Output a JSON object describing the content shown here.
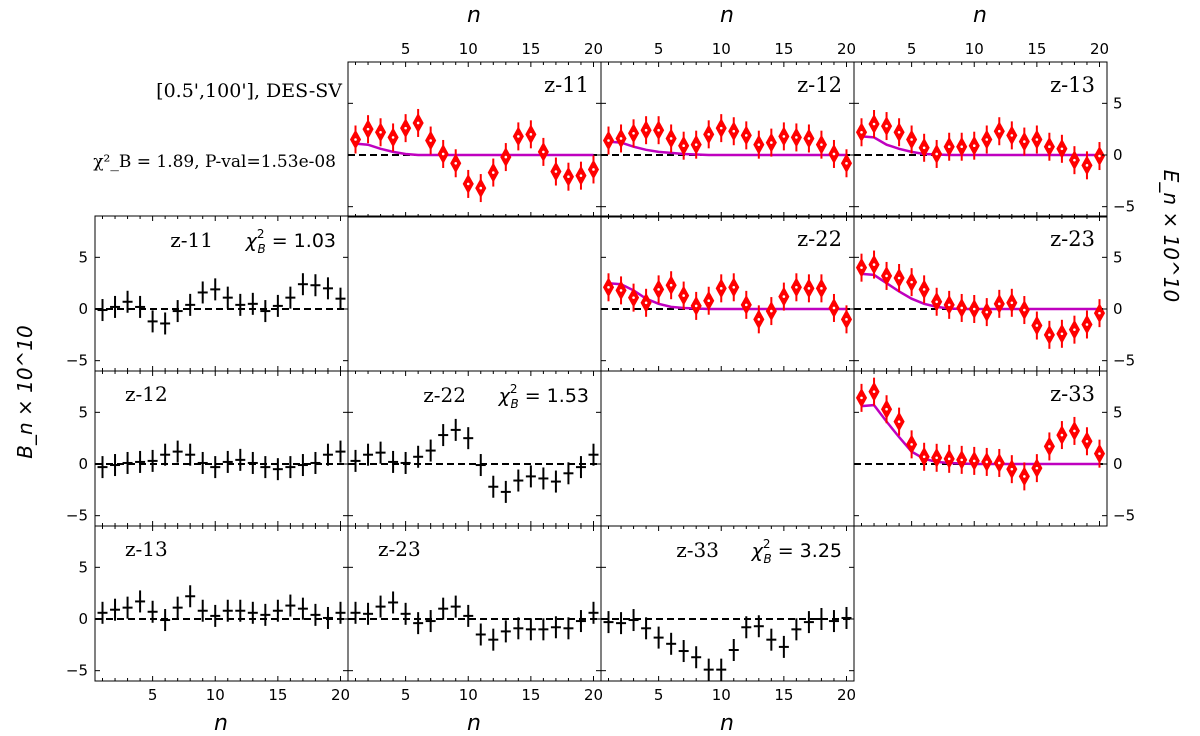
{
  "figure": {
    "header_text": "[0.5',100'],  DES-SV",
    "chi_text": "χ²_B = 1.89, P-val=1.53e-08",
    "x_axis_label": "n",
    "left_ylabel": "B_n × 10^10",
    "right_ylabel": "E_n × 10^10",
    "x_ticks": [
      5,
      10,
      15,
      20
    ],
    "y_ticks": [
      -5,
      0,
      5
    ],
    "colors": {
      "e_marker": "#ff0000",
      "e_model": "#bf00bf",
      "b_marker": "#000000",
      "zero_line": "#000000"
    }
  },
  "chart_data": [
    {
      "type": "scatter",
      "id": "E-z11",
      "label": "z-11",
      "xlim": [
        0.4,
        20.6
      ],
      "ylim": [
        -6,
        9
      ],
      "x": [
        1,
        2,
        3,
        4,
        5,
        6,
        7,
        8,
        9,
        10,
        11,
        12,
        13,
        14,
        15,
        16,
        17,
        18,
        19,
        20
      ],
      "values": [
        1.5,
        2.5,
        2.2,
        1.7,
        2.6,
        3.1,
        1.4,
        0.1,
        -0.8,
        -2.8,
        -3.2,
        -1.7,
        -0.2,
        1.8,
        2.0,
        0.3,
        -1.6,
        -2.1,
        -2.0,
        -1.4
      ],
      "model": [
        1.1,
        1.0,
        0.6,
        0.3,
        0.1,
        0.0,
        0.0,
        0,
        0,
        0,
        0,
        0,
        0,
        0,
        0,
        0,
        0,
        0,
        0,
        0
      ]
    },
    {
      "type": "scatter",
      "id": "E-z12",
      "label": "z-12",
      "xlim": [
        0.4,
        20.6
      ],
      "ylim": [
        -6,
        9
      ],
      "x": [
        1,
        2,
        3,
        4,
        5,
        6,
        7,
        8,
        9,
        10,
        11,
        12,
        13,
        14,
        15,
        16,
        17,
        18,
        19,
        20
      ],
      "values": [
        1.4,
        1.6,
        2.1,
        2.4,
        2.4,
        1.6,
        0.9,
        1.0,
        2.0,
        2.6,
        2.3,
        1.9,
        1.0,
        1.2,
        1.8,
        1.7,
        1.6,
        1.0,
        0.1,
        -0.8
      ],
      "model": [
        1.3,
        1.2,
        0.8,
        0.5,
        0.3,
        0.2,
        0.1,
        0.05,
        0,
        0,
        0,
        0,
        0,
        0,
        0,
        0,
        0,
        0,
        0,
        0
      ]
    },
    {
      "type": "scatter",
      "id": "E-z13",
      "label": "z-13",
      "xlim": [
        0.4,
        20.6
      ],
      "ylim": [
        -6,
        9
      ],
      "x": [
        1,
        2,
        3,
        4,
        5,
        6,
        7,
        8,
        9,
        10,
        11,
        12,
        13,
        14,
        15,
        16,
        17,
        18,
        19,
        20
      ],
      "values": [
        2.2,
        3.0,
        2.8,
        2.2,
        1.5,
        0.7,
        0.1,
        0.8,
        0.8,
        0.9,
        1.5,
        2.3,
        1.9,
        1.3,
        1.5,
        0.8,
        0.6,
        -0.5,
        -1.0,
        -0.1
      ],
      "model": [
        1.8,
        1.7,
        1.0,
        0.6,
        0.3,
        0.1,
        0.05,
        0,
        0,
        0,
        0,
        0,
        0,
        0,
        0,
        0,
        0,
        0,
        0,
        0
      ]
    },
    {
      "type": "scatter",
      "id": "B-z11",
      "label": "z-11",
      "chi": "χ²_B = 1.03",
      "xlim": [
        0.4,
        20.6
      ],
      "ylim": [
        -6,
        9
      ],
      "x": [
        1,
        2,
        3,
        4,
        5,
        6,
        7,
        8,
        9,
        10,
        11,
        12,
        13,
        14,
        15,
        16,
        17,
        18,
        19,
        20
      ],
      "values": [
        -0.1,
        0.2,
        0.7,
        0.2,
        -1.2,
        -1.4,
        -0.2,
        0.4,
        1.6,
        1.9,
        1.1,
        0.4,
        0.5,
        -0.2,
        0.3,
        1.1,
        2.4,
        2.3,
        2.0,
        1.0
      ]
    },
    {
      "type": "scatter",
      "id": "E-z22",
      "label": "z-22",
      "xlim": [
        0.4,
        20.6
      ],
      "ylim": [
        -6,
        9
      ],
      "x": [
        1,
        2,
        3,
        4,
        5,
        6,
        7,
        8,
        9,
        10,
        11,
        12,
        13,
        14,
        15,
        16,
        17,
        18,
        19,
        20
      ],
      "values": [
        2.1,
        1.8,
        1.1,
        0.6,
        1.9,
        2.3,
        1.3,
        0.3,
        0.8,
        2.0,
        2.1,
        0.4,
        -1.0,
        -0.2,
        1.2,
        2.1,
        2.0,
        2.0,
        0.1,
        -1.0
      ],
      "model": [
        2.5,
        2.4,
        1.8,
        1.0,
        0.5,
        0.2,
        0.1,
        0.05,
        0,
        0,
        0,
        0,
        0,
        0,
        0,
        0,
        0,
        0,
        0,
        0
      ]
    },
    {
      "type": "scatter",
      "id": "E-z23",
      "label": "z-23",
      "xlim": [
        0.4,
        20.6
      ],
      "ylim": [
        -6,
        9
      ],
      "x": [
        1,
        2,
        3,
        4,
        5,
        6,
        7,
        8,
        9,
        10,
        11,
        12,
        13,
        14,
        15,
        16,
        17,
        18,
        19,
        20
      ],
      "values": [
        4.0,
        4.3,
        3.2,
        3.0,
        2.6,
        1.9,
        0.7,
        0.4,
        0.1,
        0.0,
        -0.3,
        0.5,
        0.6,
        -0.1,
        -1.6,
        -2.5,
        -2.4,
        -2.0,
        -1.5,
        -0.4
      ],
      "model": [
        3.4,
        3.3,
        2.5,
        1.7,
        1.0,
        0.5,
        0.2,
        0.05,
        0,
        0,
        0,
        0,
        0,
        0,
        0,
        0,
        0,
        0,
        0,
        0
      ]
    },
    {
      "type": "scatter",
      "id": "B-z12",
      "label": "z-12",
      "xlim": [
        0.4,
        20.6
      ],
      "ylim": [
        -6,
        9
      ],
      "x": [
        1,
        2,
        3,
        4,
        5,
        6,
        7,
        8,
        9,
        10,
        11,
        12,
        13,
        14,
        15,
        16,
        17,
        18,
        19,
        20
      ],
      "values": [
        -0.3,
        -0.1,
        0.1,
        0.2,
        0.3,
        0.9,
        1.2,
        0.9,
        0.1,
        -0.3,
        0.2,
        0.4,
        0.1,
        -0.3,
        -0.5,
        -0.3,
        -0.1,
        0.1,
        0.9,
        1.2
      ]
    },
    {
      "type": "scatter",
      "id": "B-z22",
      "label": "z-22",
      "chi": "χ²_B = 1.53",
      "xlim": [
        0.4,
        20.6
      ],
      "ylim": [
        -6,
        9
      ],
      "x": [
        1,
        2,
        3,
        4,
        5,
        6,
        7,
        8,
        9,
        10,
        11,
        12,
        13,
        14,
        15,
        16,
        17,
        18,
        19,
        20
      ],
      "values": [
        0.3,
        0.9,
        1.1,
        0.2,
        0.1,
        0.7,
        1.3,
        2.8,
        3.3,
        2.5,
        -0.1,
        -2.2,
        -2.7,
        -1.6,
        -1.2,
        -1.4,
        -1.7,
        -0.9,
        -0.3,
        0.9
      ]
    },
    {
      "type": "scatter",
      "id": "E-z33",
      "label": "z-33",
      "xlim": [
        0.4,
        20.6
      ],
      "ylim": [
        -6,
        9
      ],
      "x": [
        1,
        2,
        3,
        4,
        5,
        6,
        7,
        8,
        9,
        10,
        11,
        12,
        13,
        14,
        15,
        16,
        17,
        18,
        19,
        20
      ],
      "values": [
        6.4,
        7.0,
        5.3,
        4.1,
        1.9,
        0.7,
        0.6,
        0.5,
        0.4,
        0.3,
        0.2,
        0.1,
        -0.5,
        -1.2,
        -0.4,
        1.7,
        2.8,
        3.2,
        2.2,
        1.0
      ],
      "model": [
        5.6,
        5.7,
        4.1,
        2.6,
        1.2,
        0.5,
        0.2,
        0.1,
        0.05,
        0,
        0,
        0,
        0,
        0,
        0,
        0,
        0,
        0,
        0,
        0
      ]
    },
    {
      "type": "scatter",
      "id": "B-z13",
      "label": "z-13",
      "xlim": [
        0.4,
        20.6
      ],
      "ylim": [
        -6,
        9
      ],
      "x": [
        1,
        2,
        3,
        4,
        5,
        6,
        7,
        8,
        9,
        10,
        11,
        12,
        13,
        14,
        15,
        16,
        17,
        18,
        19,
        20
      ],
      "values": [
        0.6,
        0.9,
        1.1,
        1.7,
        0.7,
        -0.1,
        1.1,
        2.2,
        0.8,
        0.3,
        0.8,
        0.8,
        0.6,
        0.4,
        0.8,
        1.3,
        1.0,
        0.4,
        0.1,
        0.6
      ]
    },
    {
      "type": "scatter",
      "id": "B-z23",
      "label": "z-23",
      "xlim": [
        0.4,
        20.6
      ],
      "ylim": [
        -6,
        9
      ],
      "x": [
        1,
        2,
        3,
        4,
        5,
        6,
        7,
        8,
        9,
        10,
        11,
        12,
        13,
        14,
        15,
        16,
        17,
        18,
        19,
        20
      ],
      "values": [
        0.6,
        0.5,
        1.2,
        1.6,
        0.5,
        -0.4,
        -0.2,
        1.0,
        1.2,
        0.3,
        -1.5,
        -2.0,
        -1.2,
        -0.9,
        -1.0,
        -1.0,
        -0.8,
        -0.9,
        -0.2,
        0.6
      ]
    },
    {
      "type": "scatter",
      "id": "B-z33",
      "label": "z-33",
      "chi": "χ²_B = 3.25",
      "xlim": [
        0.4,
        20.6
      ],
      "ylim": [
        -6,
        9
      ],
      "x": [
        1,
        2,
        3,
        4,
        5,
        6,
        7,
        8,
        9,
        10,
        11,
        12,
        13,
        14,
        15,
        16,
        17,
        18,
        19,
        20
      ],
      "values": [
        -0.3,
        -0.4,
        -0.1,
        -0.9,
        -1.8,
        -2.4,
        -3.1,
        -3.7,
        -4.9,
        -4.9,
        -3.0,
        -0.8,
        -0.7,
        -2.0,
        -2.7,
        -1.0,
        -0.3,
        0.0,
        -0.2,
        0.1
      ]
    }
  ]
}
